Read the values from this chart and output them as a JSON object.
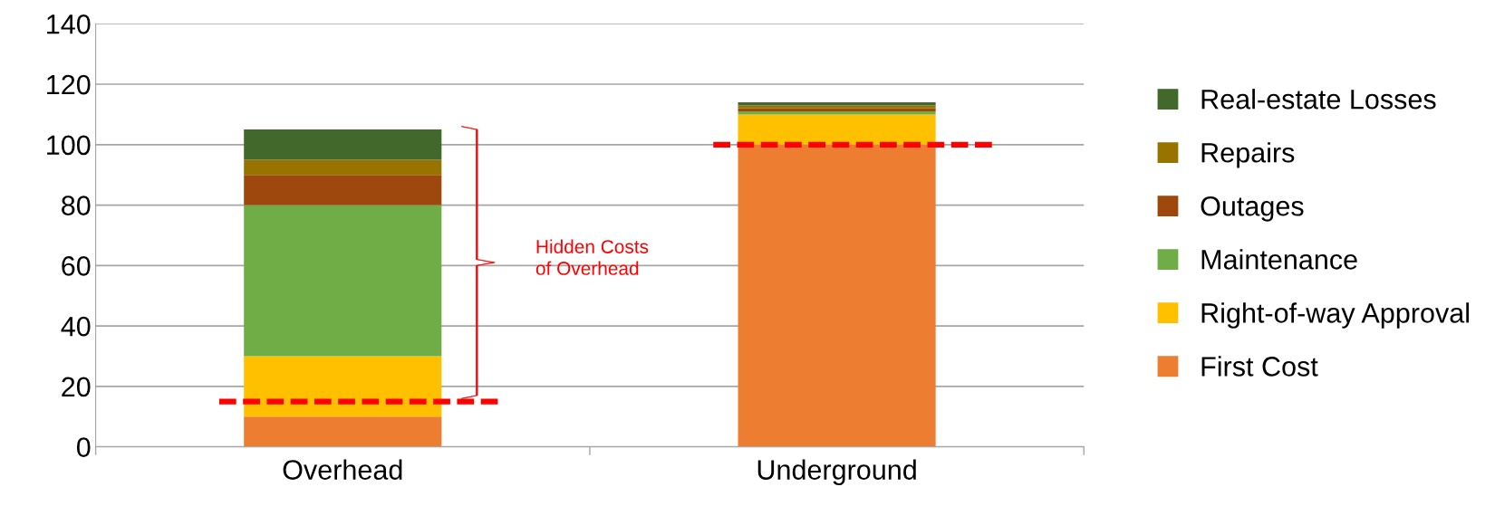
{
  "chart_data": {
    "type": "bar",
    "stacked": true,
    "categories": [
      "Overhead",
      "Underground"
    ],
    "series": [
      {
        "name": "First Cost",
        "color": "#ed7d31",
        "values": [
          10,
          100
        ]
      },
      {
        "name": "Right-of-way Approval",
        "color": "#ffc000",
        "values": [
          20,
          10
        ]
      },
      {
        "name": "Maintenance",
        "color": "#70ad47",
        "values": [
          50,
          1
        ]
      },
      {
        "name": "Outages",
        "color": "#9e480e",
        "values": [
          10,
          1
        ]
      },
      {
        "name": "Repairs",
        "color": "#997300",
        "values": [
          5,
          1
        ]
      },
      {
        "name": "Real-estate Losses",
        "color": "#43682b",
        "values": [
          10,
          1
        ]
      }
    ],
    "ylim": [
      0,
      140
    ],
    "yticks": [
      0,
      20,
      40,
      60,
      80,
      100,
      120,
      140
    ],
    "grid": "y",
    "legend": "right",
    "ref_lines": [
      {
        "axis": "y",
        "value": 15,
        "color": "#ff0000",
        "line_style": "dashed"
      },
      {
        "axis": "y",
        "value": 100,
        "color": "#ff0000",
        "line_style": "dashed"
      }
    ],
    "annotations": [
      "Hidden Costs\nof Overhead"
    ]
  }
}
